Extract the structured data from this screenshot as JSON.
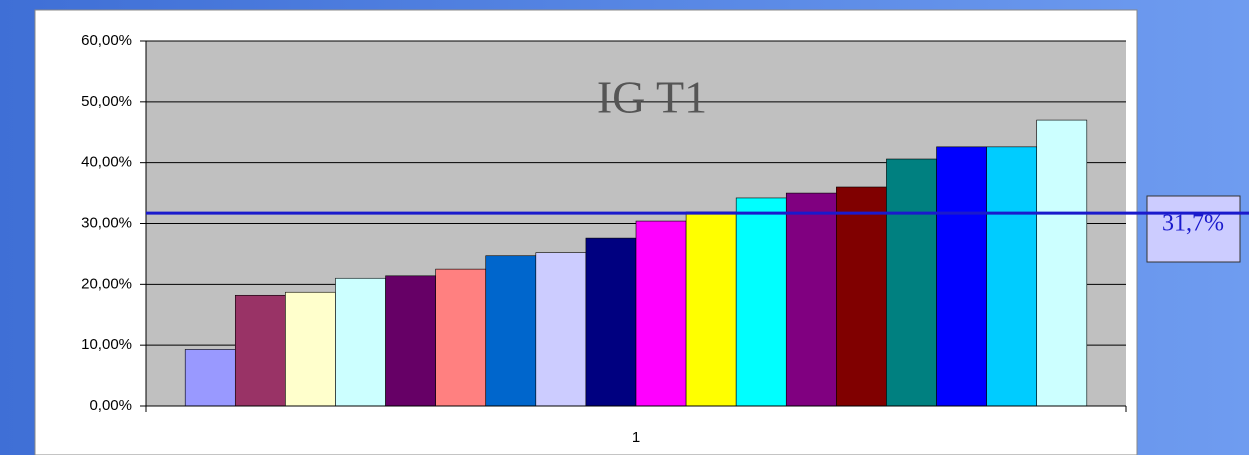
{
  "chart_data": {
    "type": "bar",
    "title": "IG T1",
    "categories": [
      "1"
    ],
    "series": [
      {
        "color": "#9999ff",
        "values": [
          9.3
        ]
      },
      {
        "color": "#993366",
        "values": [
          18.2
        ]
      },
      {
        "color": "#ffffcc",
        "values": [
          18.7
        ]
      },
      {
        "color": "#ccffff",
        "values": [
          21.0
        ]
      },
      {
        "color": "#660066",
        "values": [
          21.4
        ]
      },
      {
        "color": "#ff8080",
        "values": [
          22.5
        ]
      },
      {
        "color": "#0066cc",
        "values": [
          24.7
        ]
      },
      {
        "color": "#ccccff",
        "values": [
          25.2
        ]
      },
      {
        "color": "#000080",
        "values": [
          27.6
        ]
      },
      {
        "color": "#ff00ff",
        "values": [
          30.4
        ]
      },
      {
        "color": "#ffff00",
        "values": [
          31.9
        ]
      },
      {
        "color": "#00ffff",
        "values": [
          34.2
        ]
      },
      {
        "color": "#800080",
        "values": [
          35.0
        ]
      },
      {
        "color": "#800000",
        "values": [
          36.0
        ]
      },
      {
        "color": "#008080",
        "values": [
          40.6
        ]
      },
      {
        "color": "#0000ff",
        "values": [
          42.6
        ]
      },
      {
        "color": "#00ccff",
        "values": [
          42.6
        ]
      },
      {
        "color": "#ccffff",
        "values": [
          47.0
        ]
      }
    ],
    "ylim": [
      0,
      60
    ],
    "yticks": [
      {
        "value": 0,
        "label": "0,00%"
      },
      {
        "value": 10,
        "label": "10,00%"
      },
      {
        "value": 20,
        "label": "20,00%"
      },
      {
        "value": 30,
        "label": "30,00%"
      },
      {
        "value": 40,
        "label": "40,00%"
      },
      {
        "value": 50,
        "label": "50,00%"
      },
      {
        "value": 60,
        "label": "60,00%"
      }
    ],
    "grid": true,
    "reference_line": {
      "value": 31.7,
      "label": "31,7%",
      "color": "#1a1acc"
    }
  }
}
